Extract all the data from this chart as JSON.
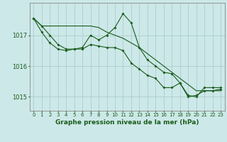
{
  "background_color": "#cce8e8",
  "line_color": "#1a5c1a",
  "grid_color": "#a8c8c8",
  "axis_color": "#888888",
  "ylabel_ticks": [
    1015,
    1016,
    1017
  ],
  "xlabel_ticks": [
    0,
    1,
    2,
    3,
    4,
    5,
    6,
    7,
    8,
    9,
    10,
    11,
    12,
    13,
    14,
    15,
    16,
    17,
    18,
    19,
    20,
    21,
    22,
    23
  ],
  "xlabel": "Graphe pression niveau de la mer (hPa)",
  "series1": [
    1017.55,
    1017.3,
    1017.0,
    1016.7,
    1016.55,
    1016.55,
    1016.6,
    1017.0,
    1016.85,
    1017.0,
    1017.25,
    1017.7,
    1017.4,
    1016.6,
    1016.2,
    1016.0,
    1015.8,
    1015.75,
    1015.45,
    1015.05,
    1015.0,
    1015.3,
    1015.3,
    1015.3
  ],
  "series2": [
    1017.55,
    1017.1,
    1016.75,
    1016.55,
    1016.5,
    1016.55,
    1016.55,
    1016.7,
    1016.65,
    1016.6,
    1016.6,
    1016.5,
    1016.1,
    1015.9,
    1015.7,
    1015.6,
    1015.3,
    1015.3,
    1015.45,
    1015.0,
    1015.05,
    1015.2,
    1015.2,
    1015.25
  ],
  "series3_x": [
    0,
    1,
    2,
    3,
    4,
    5,
    6,
    7,
    8,
    9,
    10,
    11,
    12,
    13,
    14,
    15,
    16,
    17,
    18,
    19,
    20,
    21,
    22,
    23
  ],
  "series3": [
    1017.55,
    1017.3,
    1017.3,
    1017.3,
    1017.3,
    1017.3,
    1017.3,
    1017.3,
    1017.25,
    1017.1,
    1017.0,
    1016.9,
    1016.75,
    1016.6,
    1016.4,
    1016.2,
    1016.0,
    1015.8,
    1015.6,
    1015.4,
    1015.2,
    1015.2,
    1015.2,
    1015.2
  ],
  "ylim": [
    1014.55,
    1018.05
  ],
  "xlim": [
    -0.5,
    23.5
  ]
}
